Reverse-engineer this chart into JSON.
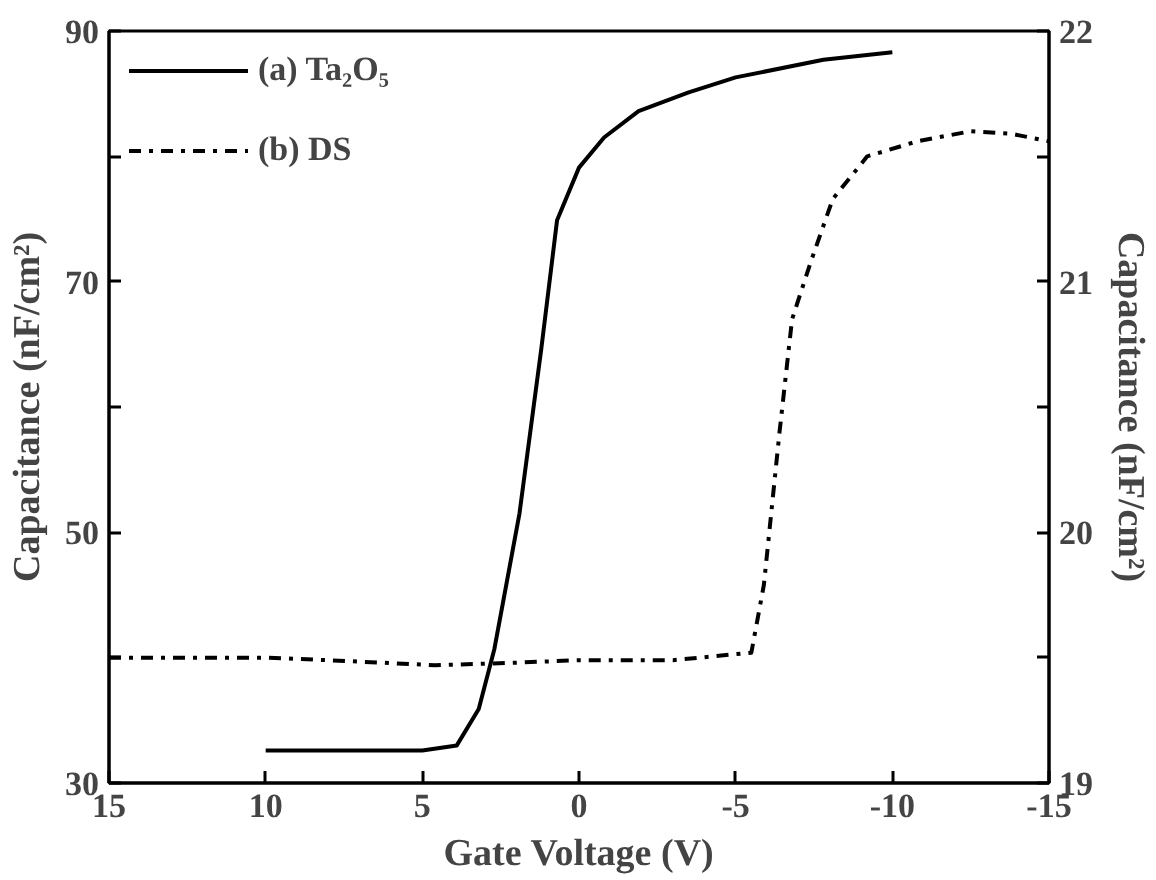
{
  "chart_data": {
    "type": "line",
    "xlabel": "Gate Voltage (V)",
    "ylabel": "Capacitance (nF/cm²)",
    "y2label": "Capacitance (nF/cm²)",
    "xlim": [
      15,
      -15
    ],
    "xticks": [
      15,
      10,
      5,
      0,
      -5,
      -10,
      -15
    ],
    "ylim": [
      30,
      90
    ],
    "yticks": [
      30,
      {
        "value": 40,
        "label": null
      },
      50,
      {
        "value": 60,
        "label": null
      },
      70,
      {
        "value": 80,
        "label": null
      },
      90
    ],
    "y2lim": [
      19,
      22
    ],
    "y2ticks": [
      19,
      {
        "value": 19.5,
        "label": null
      },
      20,
      {
        "value": 20.5,
        "label": null
      },
      21,
      {
        "value": 21.5,
        "label": null
      },
      22
    ],
    "grid": false,
    "legend": "top left",
    "series": [
      {
        "name": "(a) Ta₂O₅",
        "color": "#000000",
        "line_style": "solid",
        "x": [
          10,
          5,
          3.9,
          3.2,
          2.7,
          1.9,
          1.2,
          0.7,
          0,
          -0.8,
          -1.9,
          -3.5,
          -5,
          -7.8,
          -10
        ],
        "values": [
          32.6,
          32.6,
          33,
          35.9,
          40.7,
          51.5,
          64.7,
          74.9,
          79.1,
          81.5,
          83.6,
          85.1,
          86.3,
          87.7,
          88.3
        ]
      },
      {
        "name": "(b) DS",
        "color": "#000000",
        "line_style": "dashdot",
        "axis": "y2",
        "x": [
          15,
          10,
          8,
          4.6,
          2,
          0,
          -3,
          -5.5,
          -5.9,
          -6.4,
          -6.8,
          -7.4,
          -8.1,
          -9.2,
          -10.8,
          -12.5,
          -13.8,
          -15
        ],
        "values": [
          19.5,
          19.5,
          19.49,
          19.47,
          19.48,
          19.49,
          19.49,
          19.52,
          19.79,
          20.4,
          20.85,
          21.08,
          21.33,
          21.5,
          21.56,
          21.6,
          21.59,
          21.56
        ]
      }
    ]
  }
}
